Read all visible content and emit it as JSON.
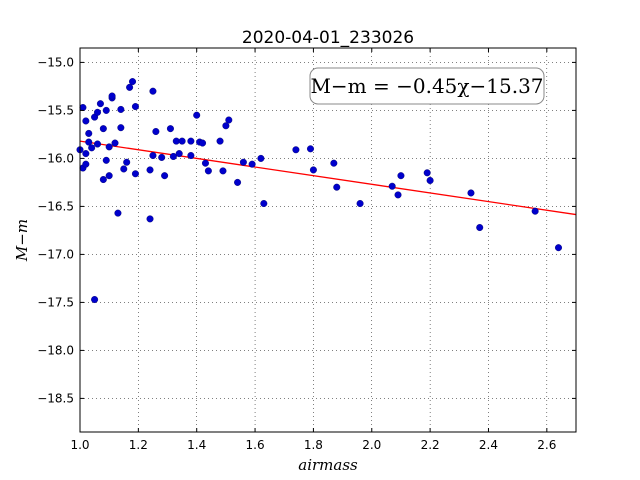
{
  "chart_data": {
    "type": "scatter",
    "title": "2020-04-01_233026",
    "xlabel": "airmass",
    "ylabel": "M−m",
    "annotation": "M−m = −0.45χ−15.37",
    "xlim": [
      1.0,
      2.7
    ],
    "ylim": [
      -18.85,
      -14.85
    ],
    "y_inverted": true,
    "grid": true,
    "xticks": [
      "1.0",
      "1.2",
      "1.4",
      "1.6",
      "1.8",
      "2.0",
      "2.2",
      "2.4",
      "2.6"
    ],
    "yticks": [
      "−15.0",
      "−15.5",
      "−16.0",
      "−16.5",
      "−17.0",
      "−17.5",
      "−18.0",
      "−18.5"
    ],
    "fit_line": {
      "slope": -0.45,
      "intercept": -15.37,
      "color": "#ff0000"
    },
    "point_color": "#0000cc",
    "points": [
      [
        1.0,
        -15.91
      ],
      [
        1.01,
        -16.1
      ],
      [
        1.01,
        -15.47
      ],
      [
        1.02,
        -15.95
      ],
      [
        1.02,
        -16.06
      ],
      [
        1.02,
        -15.61
      ],
      [
        1.03,
        -15.74
      ],
      [
        1.03,
        -15.83
      ],
      [
        1.04,
        -15.89
      ],
      [
        1.05,
        -15.57
      ],
      [
        1.05,
        -17.47
      ],
      [
        1.06,
        -15.52
      ],
      [
        1.06,
        -15.85
      ],
      [
        1.07,
        -15.43
      ],
      [
        1.08,
        -15.69
      ],
      [
        1.08,
        -16.22
      ],
      [
        1.09,
        -15.5
      ],
      [
        1.09,
        -16.02
      ],
      [
        1.1,
        -16.18
      ],
      [
        1.1,
        -15.88
      ],
      [
        1.11,
        -15.37
      ],
      [
        1.11,
        -15.35
      ],
      [
        1.12,
        -15.84
      ],
      [
        1.13,
        -16.57
      ],
      [
        1.14,
        -15.68
      ],
      [
        1.14,
        -15.49
      ],
      [
        1.15,
        -16.11
      ],
      [
        1.16,
        -16.04
      ],
      [
        1.17,
        -15.26
      ],
      [
        1.18,
        -15.2
      ],
      [
        1.19,
        -15.46
      ],
      [
        1.19,
        -16.16
      ],
      [
        1.24,
        -16.12
      ],
      [
        1.24,
        -16.63
      ],
      [
        1.25,
        -15.3
      ],
      [
        1.25,
        -15.97
      ],
      [
        1.26,
        -15.72
      ],
      [
        1.28,
        -15.99
      ],
      [
        1.29,
        -16.18
      ],
      [
        1.31,
        -15.69
      ],
      [
        1.32,
        -15.98
      ],
      [
        1.33,
        -15.82
      ],
      [
        1.34,
        -15.95
      ],
      [
        1.35,
        -15.82
      ],
      [
        1.38,
        -15.82
      ],
      [
        1.38,
        -15.97
      ],
      [
        1.4,
        -15.55
      ],
      [
        1.41,
        -15.83
      ],
      [
        1.42,
        -15.84
      ],
      [
        1.43,
        -16.05
      ],
      [
        1.44,
        -16.13
      ],
      [
        1.48,
        -15.82
      ],
      [
        1.49,
        -16.13
      ],
      [
        1.5,
        -15.66
      ],
      [
        1.51,
        -15.6
      ],
      [
        1.54,
        -16.25
      ],
      [
        1.56,
        -16.04
      ],
      [
        1.59,
        -16.06
      ],
      [
        1.62,
        -16.0
      ],
      [
        1.63,
        -16.47
      ],
      [
        1.74,
        -15.91
      ],
      [
        1.79,
        -15.9
      ],
      [
        1.8,
        -16.12
      ],
      [
        1.87,
        -16.05
      ],
      [
        1.88,
        -16.3
      ],
      [
        1.96,
        -16.47
      ],
      [
        2.07,
        -16.29
      ],
      [
        2.09,
        -16.38
      ],
      [
        2.1,
        -16.18
      ],
      [
        2.19,
        -16.15
      ],
      [
        2.2,
        -16.23
      ],
      [
        2.34,
        -16.36
      ],
      [
        2.37,
        -16.72
      ],
      [
        2.56,
        -16.55
      ],
      [
        2.64,
        -16.93
      ]
    ]
  }
}
